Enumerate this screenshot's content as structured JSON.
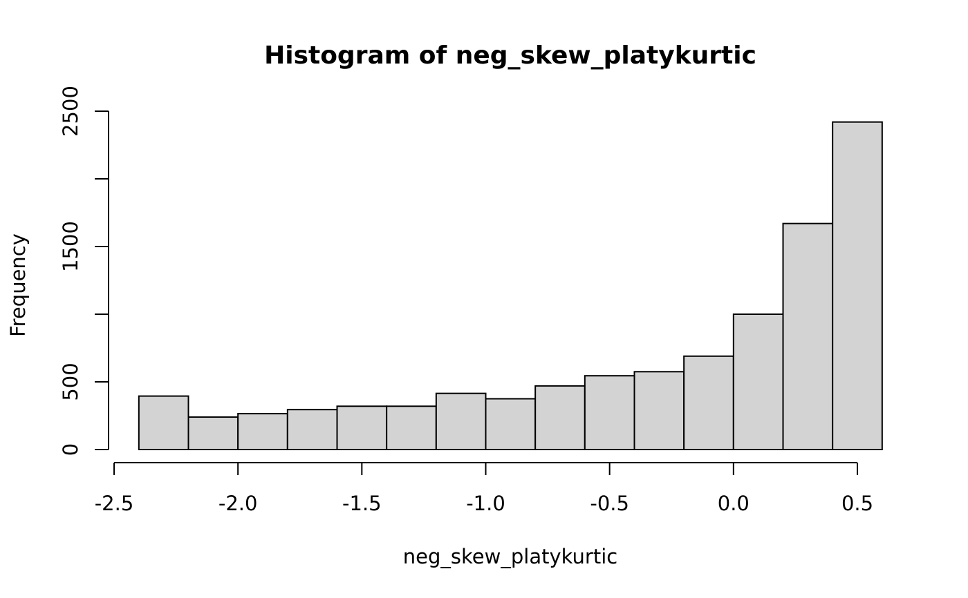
{
  "chart_data": {
    "type": "bar",
    "title": "Histogram of neg_skew_platykurtic",
    "xlabel": "neg_skew_platykurtic",
    "ylabel": "Frequency",
    "bins": [
      {
        "start": -2.4,
        "end": -2.2,
        "count": 395
      },
      {
        "start": -2.2,
        "end": -2.0,
        "count": 240
      },
      {
        "start": -2.0,
        "end": -1.8,
        "count": 265
      },
      {
        "start": -1.8,
        "end": -1.6,
        "count": 295
      },
      {
        "start": -1.6,
        "end": -1.4,
        "count": 320
      },
      {
        "start": -1.4,
        "end": -1.2,
        "count": 320
      },
      {
        "start": -1.2,
        "end": -1.0,
        "count": 415
      },
      {
        "start": -1.0,
        "end": -0.8,
        "count": 375
      },
      {
        "start": -0.8,
        "end": -0.6,
        "count": 470
      },
      {
        "start": -0.6,
        "end": -0.4,
        "count": 545
      },
      {
        "start": -0.4,
        "end": -0.2,
        "count": 575
      },
      {
        "start": -0.2,
        "end": 0.0,
        "count": 690
      },
      {
        "start": 0.0,
        "end": 0.2,
        "count": 1000
      },
      {
        "start": 0.2,
        "end": 0.4,
        "count": 1670
      },
      {
        "start": 0.4,
        "end": 0.6,
        "count": 2420
      }
    ],
    "x_ticks": [
      {
        "value": -2.5,
        "label": "-2.5"
      },
      {
        "value": -2.0,
        "label": "-2.0"
      },
      {
        "value": -1.5,
        "label": "-1.5"
      },
      {
        "value": -1.0,
        "label": "-1.0"
      },
      {
        "value": -0.5,
        "label": "-0.5"
      },
      {
        "value": 0.0,
        "label": "0.0"
      },
      {
        "value": 0.5,
        "label": "0.5"
      }
    ],
    "y_ticks": [
      {
        "value": 0,
        "label": "0"
      },
      {
        "value": 500,
        "label": "500"
      },
      {
        "value": 1000,
        "label": ""
      },
      {
        "value": 1500,
        "label": "1500"
      },
      {
        "value": 2000,
        "label": ""
      },
      {
        "value": 2500,
        "label": "2500"
      }
    ],
    "xlim": [
      -2.5,
      0.6
    ],
    "ylim": [
      0,
      2500
    ],
    "grid": false,
    "colors": {
      "bar_fill": "#d3d3d3",
      "bar_stroke": "#000000"
    }
  }
}
